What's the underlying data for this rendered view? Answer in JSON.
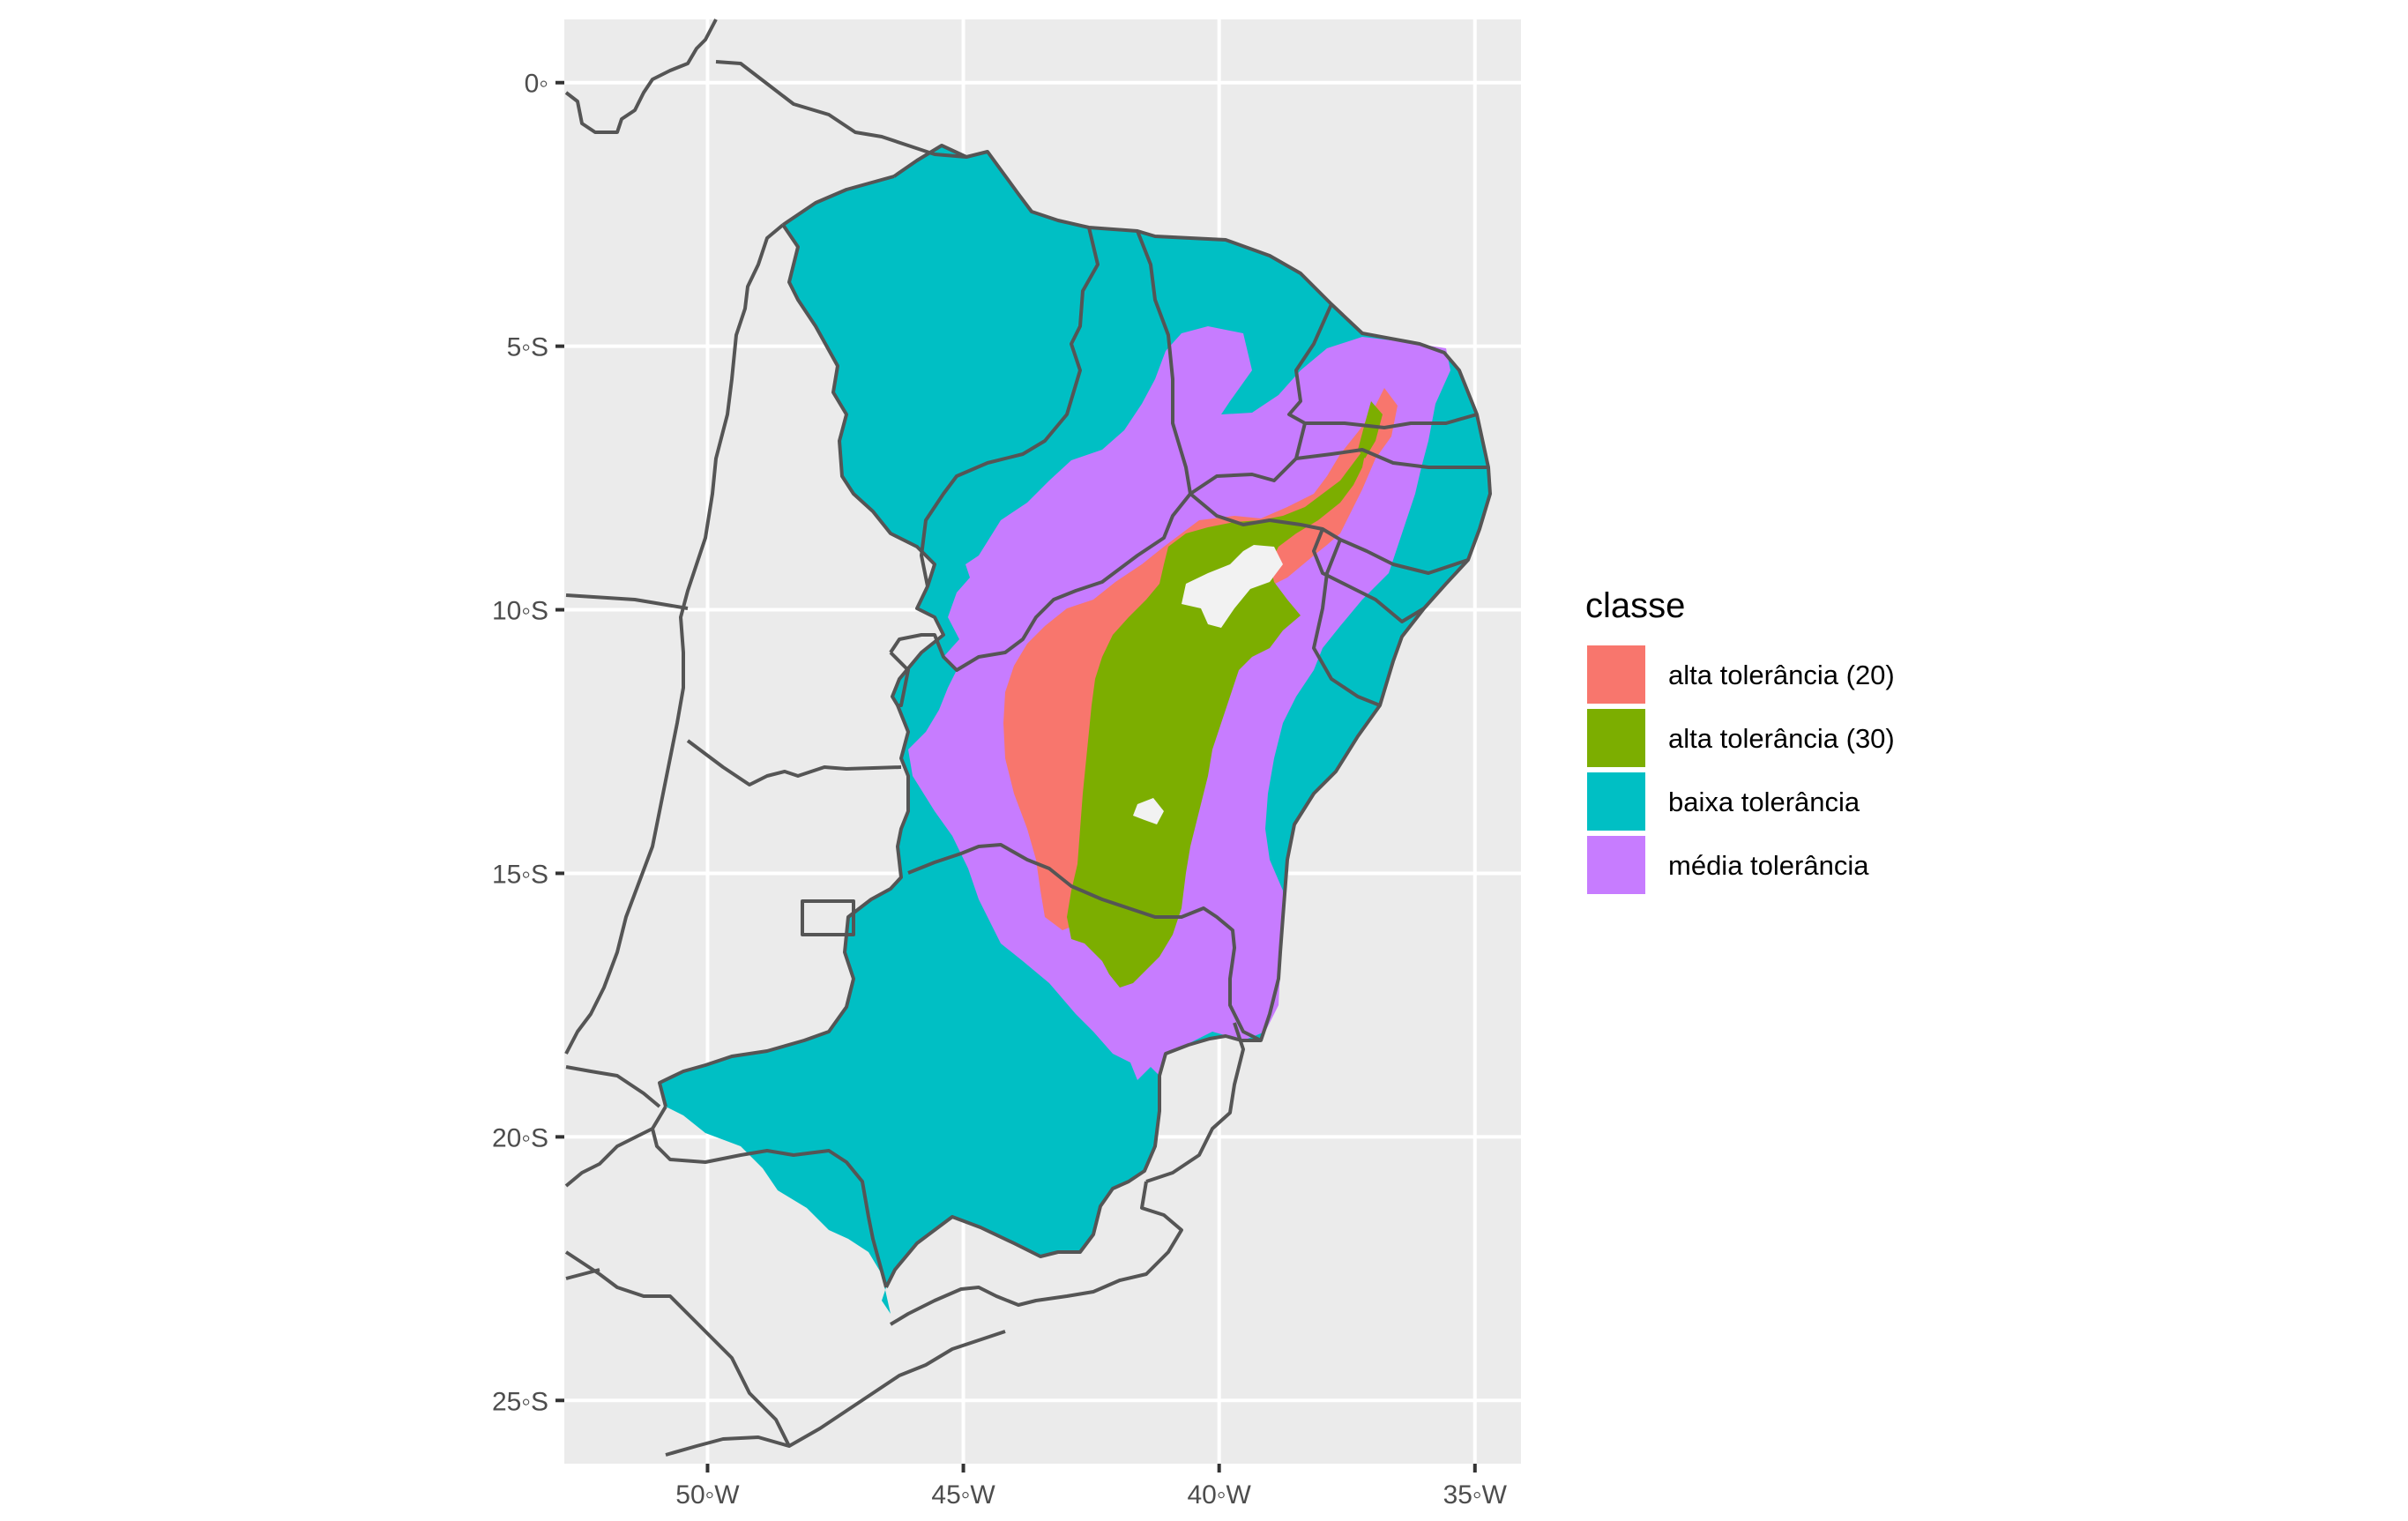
{
  "map": {
    "x_axis": {
      "ticks": [
        "50◦W",
        "45◦W",
        "40◦W",
        "35◦W"
      ],
      "lon_values": [
        -50,
        -45,
        -40,
        -35
      ],
      "range": [
        -52.8,
        -34.1
      ]
    },
    "y_axis": {
      "ticks": [
        "0◦",
        "5◦S",
        "10◦S",
        "15◦S",
        "20◦S",
        "25◦S"
      ],
      "lat_values": [
        0,
        -5,
        -10,
        -15,
        -20,
        -25
      ],
      "range": [
        -26.2,
        1.2
      ]
    },
    "grid": true,
    "legend": {
      "title": "classe",
      "placement": "right",
      "items": [
        {
          "label": "alta tolerância (20)",
          "color": "#F8766D"
        },
        {
          "label": "alta tolerância (30)",
          "color": "#7CAE00"
        },
        {
          "label": "baixa tolerância",
          "color": "#00BFC4"
        },
        {
          "label": "média tolerância",
          "color": "#C77CFF"
        }
      ]
    },
    "colors": {
      "panel_background": "#EBEBEB",
      "grid_line": "#FFFFFF",
      "state_border": "#555555",
      "no_data": "#F2F2F2"
    }
  }
}
